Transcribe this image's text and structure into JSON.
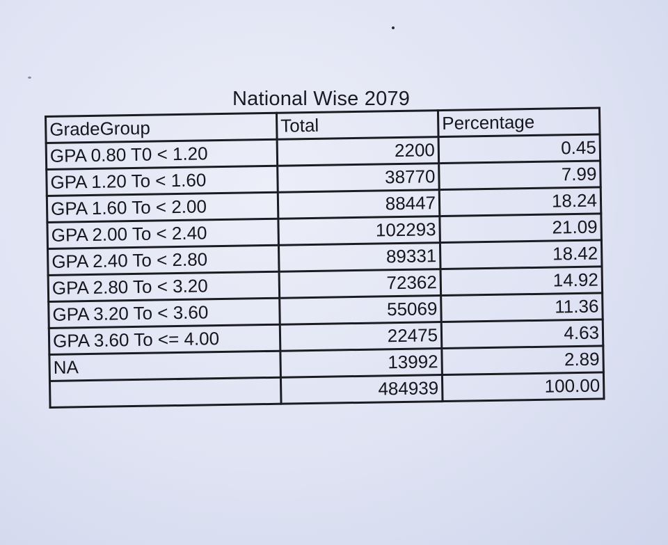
{
  "document": {
    "title": "National Wise 2079"
  },
  "table": {
    "headers": [
      "GradeGroup",
      "Total",
      "Percentage"
    ],
    "rows": [
      [
        "GPA 0.80 T0 < 1.20",
        "2200",
        "0.45"
      ],
      [
        "GPA 1.20 To < 1.60",
        "38770",
        "7.99"
      ],
      [
        "GPA 1.60 To < 2.00",
        "88447",
        "18.24"
      ],
      [
        "GPA 2.00 To < 2.40",
        "102293",
        "21.09"
      ],
      [
        "GPA 2.40 To < 2.80",
        "89331",
        "18.42"
      ],
      [
        "GPA 2.80 To < 3.20",
        "72362",
        "14.92"
      ],
      [
        "GPA 3.20 To < 3.60",
        "55069",
        "11.36"
      ],
      [
        "GPA 3.60 To <= 4.00",
        "22475",
        "4.63"
      ],
      [
        "NA",
        "13992",
        "2.89"
      ],
      [
        "",
        "484939",
        "100.00"
      ]
    ]
  }
}
